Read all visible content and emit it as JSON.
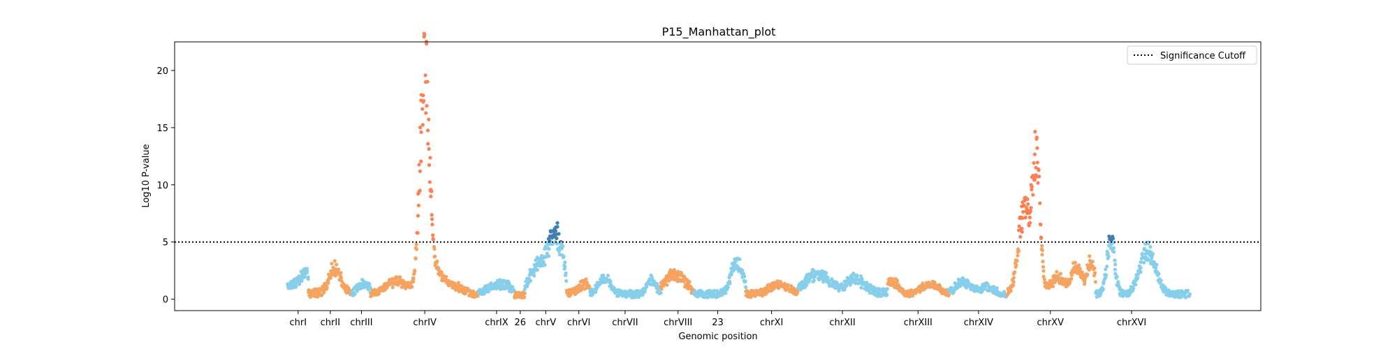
{
  "chart_data": {
    "type": "scatter",
    "title": "P15_Manhattan_plot",
    "xlabel": "Genomic position",
    "ylabel": "Log10 P-value",
    "ylim": [
      -1,
      22.5
    ],
    "xlim": [
      0,
      1
    ],
    "yticks": [
      0,
      5,
      10,
      15,
      20
    ],
    "grid": false,
    "legend": {
      "placement": "top-right",
      "entries": [
        {
          "label": "Significance Cutoff",
          "style": "dotted",
          "color": "#000000"
        }
      ]
    },
    "significance_cutoff": 5,
    "colors": {
      "blue": "#87ceeb",
      "orange": "#f4a460",
      "sig_orange": "#ff7f50",
      "sig_blue": "#3f7faf"
    },
    "chromosomes": [
      {
        "label": "chrI",
        "start": 0.045,
        "end": 0.067,
        "color": "blue",
        "base": 0.6,
        "peaks": [
          [
            0.055,
            1.0,
            0.01
          ],
          [
            0.064,
            1.2,
            0.004
          ]
        ]
      },
      {
        "label": "chrII",
        "start": 0.067,
        "end": 0.113,
        "color": "orange",
        "base": 0.6,
        "peaks": [
          [
            0.095,
            2.3,
            0.006
          ]
        ]
      },
      {
        "label": "chrIII",
        "start": 0.113,
        "end": 0.133,
        "color": "blue",
        "base": 0.5,
        "peaks": [
          [
            0.125,
            1.0,
            0.006
          ]
        ]
      },
      {
        "label": "chrIV",
        "start": 0.133,
        "end": 0.247,
        "color": "orange",
        "base": 0.45,
        "peaks": [
          [
            0.16,
            1.2,
            0.012
          ],
          [
            0.19,
            20.5,
            0.005
          ],
          [
            0.205,
            1.6,
            0.006
          ],
          [
            0.22,
            0.8,
            0.01
          ]
        ]
      },
      {
        "label": "chrIX",
        "start": 0.247,
        "end": 0.285,
        "color": "blue",
        "base": 0.5,
        "peaks": [
          [
            0.27,
            0.9,
            0.012
          ]
        ]
      },
      {
        "label": "26",
        "start": 0.285,
        "end": 0.296,
        "color": "orange",
        "base": 0.4,
        "peaks": []
      },
      {
        "label": "chrV",
        "start": 0.296,
        "end": 0.34,
        "color": "blue",
        "base": 0.6,
        "peaks": [
          [
            0.31,
            2.6,
            0.008
          ],
          [
            0.325,
            4.3,
            0.006
          ],
          [
            0.334,
            2.8,
            0.005
          ]
        ]
      },
      {
        "label": "chrVI",
        "start": 0.34,
        "end": 0.365,
        "color": "orange",
        "base": 0.6,
        "peaks": [
          [
            0.36,
            0.9,
            0.006
          ]
        ]
      },
      {
        "label": "chrVII",
        "start": 0.365,
        "end": 0.44,
        "color": "blue",
        "base": 0.5,
        "peaks": [
          [
            0.38,
            1.5,
            0.006
          ],
          [
            0.43,
            1.2,
            0.005
          ]
        ]
      },
      {
        "label": "chrVIII",
        "start": 0.44,
        "end": 0.475,
        "color": "orange",
        "base": 0.6,
        "peaks": [
          [
            0.455,
            1.8,
            0.01
          ]
        ]
      },
      {
        "label": "23",
        "start": 0.475,
        "end": 0.53,
        "color": "blue",
        "base": 0.5,
        "peaks": [
          [
            0.52,
            3.0,
            0.006
          ]
        ]
      },
      {
        "label": "chrXI",
        "start": 0.53,
        "end": 0.585,
        "color": "orange",
        "base": 0.5,
        "peaks": [
          [
            0.565,
            0.9,
            0.01
          ]
        ]
      },
      {
        "label": "chrXII",
        "start": 0.585,
        "end": 0.68,
        "color": "blue",
        "base": 0.6,
        "peaks": [
          [
            0.605,
            1.8,
            0.012
          ],
          [
            0.645,
            1.3,
            0.01
          ]
        ]
      },
      {
        "label": "chrXIII",
        "start": 0.68,
        "end": 0.745,
        "color": "orange",
        "base": 0.45,
        "peaks": [
          [
            0.685,
            1.2,
            0.006
          ],
          [
            0.725,
            0.9,
            0.01
          ]
        ]
      },
      {
        "label": "chrXIV",
        "start": 0.745,
        "end": 0.806,
        "color": "blue",
        "base": 0.45,
        "peaks": [
          [
            0.76,
            1.2,
            0.008
          ],
          [
            0.785,
            0.7,
            0.008
          ]
        ]
      },
      {
        "label": "chrXV",
        "start": 0.806,
        "end": 0.9,
        "color": "orange",
        "base": 0.5,
        "peaks": [
          [
            0.824,
            7.5,
            0.006
          ],
          [
            0.837,
            12.5,
            0.004
          ],
          [
            0.86,
            1.5,
            0.008
          ],
          [
            0.88,
            2.5,
            0.005
          ],
          [
            0.895,
            3.0,
            0.004
          ]
        ]
      },
      {
        "label": "chrXVI",
        "start": 0.9,
        "end": 1.0,
        "color": "blue",
        "base": 0.5,
        "peaks": [
          [
            0.916,
            5.0,
            0.004
          ],
          [
            0.955,
            4.0,
            0.008
          ]
        ]
      }
    ],
    "xticks": [
      {
        "label": "chrI",
        "x": 0.056
      },
      {
        "label": "chrII",
        "x": 0.09
      },
      {
        "label": "chrIII",
        "x": 0.123
      },
      {
        "label": "chrIV",
        "x": 0.19
      },
      {
        "label": "chrIX",
        "x": 0.266
      },
      {
        "label": "26",
        "x": 0.291
      },
      {
        "label": "chrV",
        "x": 0.318
      },
      {
        "label": "chrVI",
        "x": 0.353
      },
      {
        "label": "chrVII",
        "x": 0.402
      },
      {
        "label": "chrVIII",
        "x": 0.458
      },
      {
        "label": "23",
        "x": 0.5
      },
      {
        "label": "chrXI",
        "x": 0.557
      },
      {
        "label": "chrXII",
        "x": 0.632
      },
      {
        "label": "chrXIII",
        "x": 0.712
      },
      {
        "label": "chrXIV",
        "x": 0.776
      },
      {
        "label": "chrXV",
        "x": 0.852
      },
      {
        "label": "chrXVI",
        "x": 0.938
      }
    ]
  }
}
